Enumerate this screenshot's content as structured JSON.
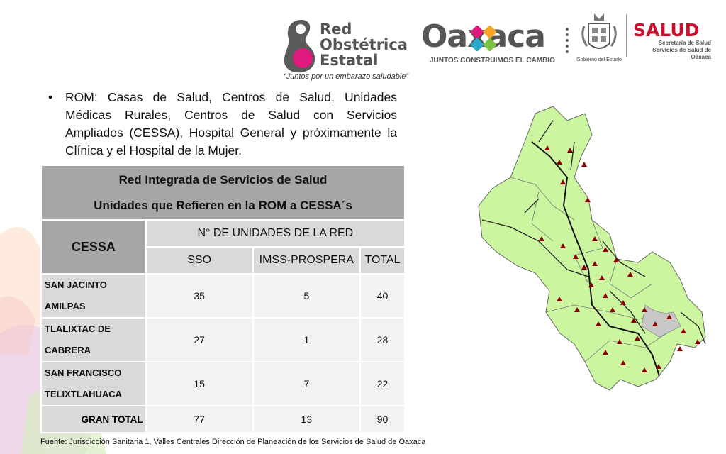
{
  "colors": {
    "accent_pink": "#e0197d",
    "salud_red": "#c8102e",
    "map_green": "#ccf5a0",
    "header_gray": "#a6a6a6",
    "cell_gray": "#d9d9d9"
  },
  "header": {
    "red_logo": {
      "line1": "Red",
      "line2": "Obstétrica",
      "line3": "Estatal",
      "tagline": "“Juntos por un embarazo saludable”"
    },
    "oaxaca_logo": {
      "word": "Oaxaca",
      "slogan": "JUNTOS CONSTRUIMOS EL CAMBIO"
    },
    "gobierno_label": "Gobierno del Estado",
    "salud_logo": {
      "title": "SALUD",
      "line1": "Secretaría de Salud",
      "line2": "Servicios de Salud de Oaxaca"
    }
  },
  "bullet": {
    "text": "ROM: Casas de Salud, Centros de Salud, Unidades Médicas Rurales, Centros de Salud con Servicios Ampliados (CESSA), Hospital General y próximamente la Clínica y el Hospital de la Mujer."
  },
  "table": {
    "title_line1": "Red Integrada de Servicios de Salud",
    "title_line2": "Unidades que Refieren en la ROM a CESSA´s",
    "col_cessa": "CESSA",
    "col_group": "N° DE UNIDADES DE LA RED",
    "sub_sso": "SSO",
    "sub_imss": "IMSS-PROSPERA",
    "sub_total": "TOTAL",
    "rows": [
      {
        "name_line1": "SAN JACINTO",
        "name_line2": "AMILPAS",
        "sso": "35",
        "imss": "5",
        "total": "40"
      },
      {
        "name_line1": "TLALIXTAC DE",
        "name_line2": "CABRERA",
        "sso": "27",
        "imss": "1",
        "total": "28"
      },
      {
        "name_line1": "SAN FRANCISCO",
        "name_line2": "TELIXTLAHUACA",
        "sso": "15",
        "imss": "7",
        "total": "22"
      }
    ],
    "total_row": {
      "label": "GRAN TOTAL",
      "sso": "77",
      "imss": "13",
      "total": "90"
    }
  },
  "source": "Fuente: Jurisdicción Sanitaria 1, Valles Centrales Dirección de Planeación de los Servicios de Salud de Oaxaca"
}
